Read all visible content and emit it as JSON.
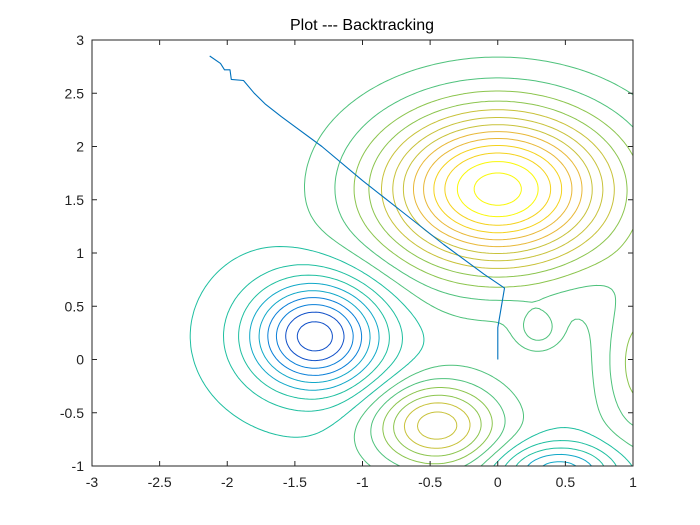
{
  "chart_data": {
    "type": "line",
    "title": "Plot --- Backtracking",
    "xlabel": "",
    "ylabel": "",
    "xlim": [
      -3,
      1
    ],
    "ylim": [
      -1,
      3
    ],
    "xticks": [
      "-3",
      "-2.5",
      "-2",
      "-1.5",
      "-1",
      "-0.5",
      "0",
      "0.5",
      "1"
    ],
    "yticks": [
      "-1",
      "-0.5",
      "0",
      "0.5",
      "1",
      "1.5",
      "2",
      "2.5",
      "3"
    ],
    "grid": false,
    "box": true,
    "colormap": [
      "#0f4fc8",
      "#0a7fd8",
      "#11a8c8",
      "#1fbfa0",
      "#4fc27c",
      "#8cc54e",
      "#c8c23a",
      "#e8b838",
      "#f4d21c",
      "#f9f80a"
    ],
    "contour_peaks": [
      {
        "kind": "max",
        "x": 0.0,
        "y": 1.6
      },
      {
        "kind": "min",
        "x": -1.35,
        "y": 0.22
      },
      {
        "kind": "max",
        "x": -0.45,
        "y": -0.62
      },
      {
        "kind": "max",
        "x": 0.3,
        "y": 0.28
      },
      {
        "kind": "min",
        "x": 0.45,
        "y": -1.0
      }
    ],
    "series": [
      {
        "style": "line",
        "color": "#0072bd",
        "x": [
          -2.13,
          -2.05,
          -2.02,
          -1.98,
          -1.97,
          -1.88,
          -1.8,
          -1.72,
          -1.6,
          -1.3,
          -1.0,
          -0.7,
          -0.4,
          -0.1,
          0.05,
          0.0,
          0.0
        ],
        "y": [
          2.85,
          2.78,
          2.72,
          2.72,
          2.63,
          2.62,
          2.5,
          2.4,
          2.28,
          2.0,
          1.68,
          1.38,
          1.08,
          0.8,
          0.67,
          0.3,
          0.0
        ]
      }
    ]
  }
}
